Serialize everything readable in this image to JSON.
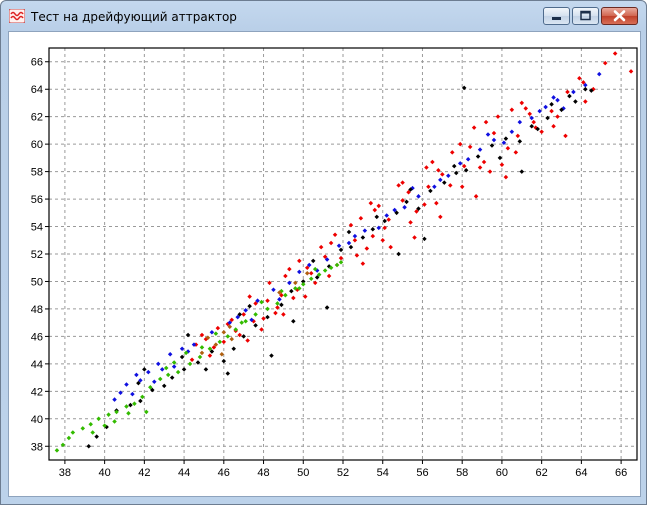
{
  "window": {
    "title": "Тест на дрейфующий аттрактор",
    "icons": {
      "app": "wave-app-icon",
      "minimize": "minimize-icon",
      "maximize": "maximize-icon",
      "close": "close-icon"
    }
  },
  "chart_data": {
    "type": "scatter",
    "title": "",
    "xlabel": "",
    "ylabel": "",
    "xlim": [
      37.2,
      66.8
    ],
    "ylim": [
      37,
      67
    ],
    "xticks": [
      38,
      40,
      42,
      44,
      46,
      48,
      50,
      52,
      54,
      56,
      58,
      60,
      62,
      64,
      66
    ],
    "yticks": [
      38,
      40,
      42,
      44,
      46,
      48,
      50,
      52,
      54,
      56,
      58,
      60,
      62,
      64,
      66
    ],
    "grid": true,
    "grid_style": "dashed",
    "legend": "none",
    "colors": {
      "red": "#ee0000",
      "blue": "#1010e0",
      "black": "#000000",
      "green": "#33bb00"
    },
    "series": [
      {
        "color": "red",
        "points": [
          [
            58.4,
            59.8
          ],
          [
            59.6,
            60.8
          ],
          [
            61.2,
            62.6
          ],
          [
            56.8,
            58.1
          ],
          [
            55.3,
            56.5
          ],
          [
            53.6,
            55.2
          ],
          [
            52.9,
            54.6
          ],
          [
            51.4,
            52.8
          ],
          [
            50.2,
            51.0
          ],
          [
            49.1,
            50.4
          ],
          [
            48.3,
            49.9
          ],
          [
            47.6,
            48.4
          ],
          [
            47.0,
            47.6
          ],
          [
            46.4,
            47.2
          ],
          [
            45.7,
            46.6
          ],
          [
            45.1,
            45.8
          ],
          [
            44.6,
            45.4
          ],
          [
            48.7,
            48.1
          ],
          [
            49.5,
            48.8
          ],
          [
            50.6,
            49.9
          ],
          [
            51.9,
            51.7
          ],
          [
            53.2,
            52.4
          ],
          [
            54.1,
            53.9
          ],
          [
            55.7,
            55.1
          ],
          [
            56.3,
            56.9
          ],
          [
            57.4,
            57.0
          ],
          [
            58.9,
            58.3
          ],
          [
            60.3,
            59.7
          ],
          [
            61.7,
            61.2
          ],
          [
            62.5,
            62.4
          ],
          [
            63.3,
            63.8
          ],
          [
            64.1,
            64.5
          ],
          [
            64.6,
            64.0
          ],
          [
            65.2,
            65.9
          ],
          [
            65.7,
            66.6
          ],
          [
            66.5,
            65.3
          ],
          [
            64.2,
            63.1
          ],
          [
            63.9,
            64.8
          ],
          [
            62.8,
            62.0
          ],
          [
            61.6,
            61.6
          ],
          [
            60.8,
            60.6
          ],
          [
            60.0,
            58.5
          ],
          [
            59.1,
            58.7
          ],
          [
            58.1,
            58.4
          ],
          [
            57.0,
            57.8
          ],
          [
            56.1,
            55.6
          ],
          [
            55.0,
            55.9
          ],
          [
            54.3,
            54.5
          ],
          [
            53.5,
            53.3
          ],
          [
            52.6,
            53.0
          ],
          [
            51.7,
            51.2
          ],
          [
            51.1,
            51.8
          ],
          [
            50.4,
            50.6
          ],
          [
            49.7,
            49.4
          ],
          [
            48.9,
            49.0
          ],
          [
            48.2,
            48.6
          ],
          [
            47.5,
            47.1
          ],
          [
            46.8,
            46.1
          ],
          [
            46.2,
            46.9
          ],
          [
            45.5,
            45.2
          ],
          [
            44.9,
            46.1
          ],
          [
            48.0,
            47.3
          ],
          [
            47.3,
            48.9
          ],
          [
            49.3,
            50.9
          ],
          [
            50.9,
            52.5
          ],
          [
            52.4,
            54.1
          ],
          [
            53.8,
            55.5
          ],
          [
            55.0,
            57.2
          ],
          [
            56.5,
            58.7
          ],
          [
            57.9,
            60.0
          ],
          [
            59.2,
            61.6
          ],
          [
            60.5,
            62.5
          ],
          [
            47.9,
            46.5
          ],
          [
            49.0,
            47.6
          ],
          [
            50.1,
            48.9
          ],
          [
            51.3,
            50.4
          ],
          [
            52.7,
            51.9
          ],
          [
            54.0,
            53.0
          ],
          [
            55.4,
            54.3
          ],
          [
            56.7,
            55.7
          ],
          [
            58.0,
            56.9
          ],
          [
            59.4,
            58.0
          ],
          [
            60.7,
            59.4
          ],
          [
            62.0,
            60.9
          ],
          [
            62.6,
            61.3
          ],
          [
            63.2,
            60.6
          ],
          [
            60.2,
            57.6
          ],
          [
            58.7,
            56.2
          ],
          [
            56.9,
            54.7
          ],
          [
            55.6,
            53.2
          ],
          [
            54.4,
            52.5
          ],
          [
            53.0,
            51.3
          ],
          [
            48.6,
            47.7
          ],
          [
            46.6,
            46.4
          ],
          [
            47.2,
            45.7
          ],
          [
            45.3,
            44.6
          ],
          [
            44.4,
            44.3
          ],
          [
            46.0,
            45.6
          ],
          [
            49.8,
            51.5
          ],
          [
            51.6,
            53.4
          ],
          [
            53.4,
            55.7
          ],
          [
            54.8,
            57.0
          ],
          [
            56.2,
            58.3
          ],
          [
            57.5,
            59.4
          ],
          [
            58.6,
            61.2
          ],
          [
            59.8,
            62.0
          ],
          [
            61.0,
            63.0
          ],
          [
            61.4,
            62.2
          ]
        ]
      },
      {
        "color": "blue",
        "points": [
          [
            41.1,
            42.5
          ],
          [
            41.6,
            43.2
          ],
          [
            42.2,
            43.4
          ],
          [
            42.7,
            44.0
          ],
          [
            43.3,
            44.7
          ],
          [
            43.9,
            45.1
          ],
          [
            44.5,
            45.4
          ],
          [
            42.9,
            43.6
          ],
          [
            41.8,
            42.8
          ],
          [
            40.8,
            41.9
          ],
          [
            46.3,
            47.0
          ],
          [
            47.1,
            47.9
          ],
          [
            47.7,
            48.6
          ],
          [
            48.5,
            49.4
          ],
          [
            49.3,
            49.9
          ],
          [
            50.3,
            51.2
          ],
          [
            51.2,
            51.6
          ],
          [
            52.3,
            52.8
          ],
          [
            53.1,
            53.7
          ],
          [
            54.2,
            54.8
          ],
          [
            55.1,
            55.4
          ],
          [
            55.8,
            56.2
          ],
          [
            56.6,
            56.9
          ],
          [
            57.3,
            57.7
          ],
          [
            58.3,
            58.9
          ],
          [
            58.9,
            59.6
          ],
          [
            59.6,
            60.3
          ],
          [
            60.1,
            60.1
          ],
          [
            60.9,
            61.6
          ],
          [
            61.5,
            61.9
          ],
          [
            62.2,
            62.7
          ],
          [
            62.8,
            63.2
          ],
          [
            63.6,
            63.8
          ],
          [
            64.2,
            64.3
          ],
          [
            64.9,
            65.1
          ],
          [
            63.1,
            62.6
          ],
          [
            62.6,
            63.4
          ],
          [
            61.9,
            62.4
          ],
          [
            60.5,
            60.9
          ],
          [
            59.3,
            60.7
          ],
          [
            57.9,
            58.6
          ],
          [
            56.9,
            57.4
          ],
          [
            55.5,
            56.8
          ],
          [
            54.6,
            55.2
          ],
          [
            53.8,
            53.9
          ],
          [
            52.6,
            53.3
          ],
          [
            51.8,
            52.6
          ],
          [
            50.7,
            50.8
          ],
          [
            49.8,
            50.7
          ],
          [
            48.8,
            48.7
          ],
          [
            47.4,
            47.2
          ],
          [
            46.7,
            47.4
          ],
          [
            45.4,
            46.3
          ],
          [
            44.2,
            44.9
          ],
          [
            43.5,
            43.8
          ],
          [
            42.5,
            42.7
          ],
          [
            41.4,
            41.8
          ],
          [
            40.5,
            41.4
          ]
        ]
      },
      {
        "color": "black",
        "points": [
          [
            39.2,
            38.0
          ],
          [
            39.6,
            38.7
          ],
          [
            40.1,
            39.4
          ],
          [
            40.6,
            40.6
          ],
          [
            41.3,
            41.0
          ],
          [
            41.8,
            41.3
          ],
          [
            42.4,
            42.1
          ],
          [
            43.0,
            42.4
          ],
          [
            43.4,
            43.0
          ],
          [
            44.0,
            43.6
          ],
          [
            44.7,
            44.1
          ],
          [
            45.4,
            44.9
          ],
          [
            46.0,
            44.2
          ],
          [
            46.5,
            45.1
          ],
          [
            47.0,
            46.0
          ],
          [
            47.6,
            46.8
          ],
          [
            48.2,
            47.4
          ],
          [
            48.9,
            48.3
          ],
          [
            49.4,
            49.3
          ],
          [
            50.0,
            50.0
          ],
          [
            50.7,
            50.3
          ],
          [
            51.3,
            51.1
          ],
          [
            51.9,
            52.3
          ],
          [
            52.4,
            52.5
          ],
          [
            53.0,
            53.2
          ],
          [
            53.5,
            53.8
          ],
          [
            54.1,
            54.4
          ],
          [
            54.7,
            55.0
          ],
          [
            55.2,
            55.8
          ],
          [
            55.8,
            55.3
          ],
          [
            56.4,
            56.6
          ],
          [
            57.1,
            57.2
          ],
          [
            57.7,
            57.9
          ],
          [
            58.2,
            58.1
          ],
          [
            58.8,
            59.1
          ],
          [
            59.5,
            59.9
          ],
          [
            60.2,
            60.4
          ],
          [
            60.9,
            60.2
          ],
          [
            61.5,
            61.3
          ],
          [
            62.3,
            61.9
          ],
          [
            63.0,
            62.5
          ],
          [
            63.7,
            63.1
          ],
          [
            64.2,
            64.0
          ],
          [
            64.5,
            63.9
          ],
          [
            58.1,
            64.1
          ],
          [
            61.0,
            58.0
          ],
          [
            56.1,
            53.1
          ],
          [
            54.8,
            52.0
          ],
          [
            48.4,
            44.6
          ],
          [
            49.5,
            47.1
          ],
          [
            51.2,
            48.1
          ],
          [
            46.2,
            43.3
          ],
          [
            45.1,
            43.6
          ],
          [
            42.0,
            43.6
          ],
          [
            41.7,
            42.6
          ],
          [
            43.9,
            44.5
          ],
          [
            44.2,
            46.1
          ],
          [
            46.8,
            47.6
          ],
          [
            52.3,
            53.6
          ],
          [
            53.7,
            54.7
          ],
          [
            57.6,
            58.4
          ],
          [
            59.9,
            59.0
          ],
          [
            61.8,
            61.1
          ],
          [
            62.5,
            62.9
          ],
          [
            63.4,
            63.5
          ],
          [
            55.4,
            56.7
          ],
          [
            50.5,
            51.5
          ],
          [
            47.3,
            48.2
          ]
        ]
      },
      {
        "color": "green",
        "points": [
          [
            37.6,
            37.7
          ],
          [
            37.9,
            38.1
          ],
          [
            38.4,
            39.0
          ],
          [
            38.9,
            39.3
          ],
          [
            39.3,
            39.6
          ],
          [
            39.7,
            40.0
          ],
          [
            40.2,
            40.3
          ],
          [
            40.6,
            40.5
          ],
          [
            41.1,
            40.9
          ],
          [
            41.5,
            41.1
          ],
          [
            41.9,
            41.6
          ],
          [
            42.3,
            42.3
          ],
          [
            42.8,
            42.9
          ],
          [
            43.2,
            43.2
          ],
          [
            43.7,
            43.4
          ],
          [
            44.3,
            44.0
          ],
          [
            44.8,
            44.5
          ],
          [
            45.3,
            45.1
          ],
          [
            45.8,
            45.6
          ],
          [
            46.2,
            46.0
          ],
          [
            46.6,
            46.5
          ],
          [
            47.1,
            47.1
          ],
          [
            47.6,
            47.6
          ],
          [
            48.2,
            48.0
          ],
          [
            48.7,
            48.4
          ],
          [
            49.1,
            49.0
          ],
          [
            49.6,
            49.5
          ],
          [
            50.0,
            49.8
          ],
          [
            50.4,
            50.2
          ],
          [
            50.8,
            50.5
          ],
          [
            51.1,
            50.8
          ],
          [
            51.4,
            51.0
          ],
          [
            51.7,
            51.2
          ],
          [
            40.0,
            39.5
          ],
          [
            39.4,
            39.0
          ],
          [
            41.2,
            40.4
          ],
          [
            42.1,
            40.5
          ],
          [
            40.5,
            39.8
          ],
          [
            43.5,
            44.1
          ],
          [
            44.9,
            45.2
          ],
          [
            46.9,
            47.0
          ],
          [
            48.9,
            49.3
          ],
          [
            50.6,
            50.9
          ],
          [
            49.8,
            49.5
          ],
          [
            47.9,
            48.5
          ],
          [
            45.6,
            46.2
          ],
          [
            43.1,
            43.7
          ],
          [
            44.1,
            44.8
          ],
          [
            51.9,
            51.4
          ],
          [
            38.2,
            38.6
          ]
        ]
      },
      {
        "color": "orange",
        "points": [
          [
            45.2,
            45.9
          ],
          [
            45.6,
            45.4
          ],
          [
            46.0,
            46.3
          ],
          [
            46.4,
            45.8
          ],
          [
            44.9,
            44.8
          ],
          [
            49.6,
            49.9
          ],
          [
            50.2,
            50.6
          ],
          [
            48.8,
            49.2
          ],
          [
            45.9,
            44.7
          ],
          [
            46.3,
            46.7
          ]
        ],
        "hex": "#b06010"
      }
    ]
  }
}
